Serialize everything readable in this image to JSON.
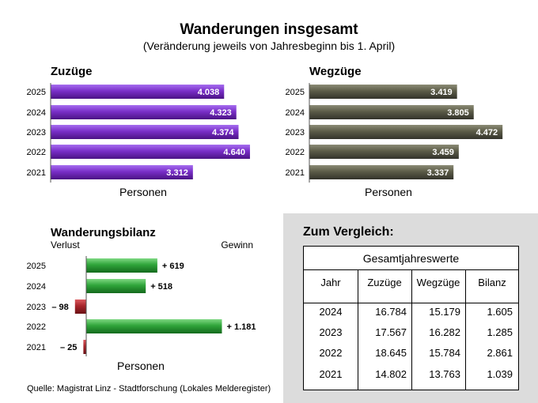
{
  "title": "Wanderungen insgesamt",
  "subtitle": "(Veränderung jeweils von Jahresbeginn bis 1. April)",
  "chart_data": [
    {
      "type": "bar",
      "title": "Zuzüge",
      "categories": [
        "2025",
        "2024",
        "2023",
        "2022",
        "2021"
      ],
      "values": [
        4038,
        4323,
        4374,
        4640,
        3312
      ],
      "value_labels": [
        "4.038",
        "4.323",
        "4.374",
        "4.640",
        "3.312"
      ],
      "xlabel": "Personen",
      "color": "#7a2fc8"
    },
    {
      "type": "bar",
      "title": "Wegzüge",
      "categories": [
        "2025",
        "2024",
        "2023",
        "2022",
        "2021"
      ],
      "values": [
        3419,
        3805,
        4472,
        3459,
        3337
      ],
      "value_labels": [
        "3.419",
        "3.805",
        "4.472",
        "3.459",
        "3.337"
      ],
      "xlabel": "Personen",
      "color": "#5c5c48"
    },
    {
      "type": "bar",
      "title": "Wanderungsbilanz",
      "left_label": "Verlust",
      "right_label": "Gewinn",
      "categories": [
        "2025",
        "2024",
        "2023",
        "2022",
        "2021"
      ],
      "values": [
        619,
        518,
        -98,
        1181,
        -25
      ],
      "value_labels": [
        "+ 619",
        "+ 518",
        "– 98",
        "+ 1.181",
        "– 25"
      ],
      "xlabel": "Personen",
      "colors": {
        "positive": "#2fa43a",
        "negative": "#a8262c"
      }
    }
  ],
  "comparison": {
    "title": "Zum Vergleich:",
    "caption": "Gesamtjahreswerte",
    "headers": [
      "Jahr",
      "Zuzüge",
      "Wegzüge",
      "Bilanz"
    ],
    "rows": [
      [
        "2024",
        "16.784",
        "15.179",
        "1.605"
      ],
      [
        "2023",
        "17.567",
        "16.282",
        "1.285"
      ],
      [
        "2022",
        "18.645",
        "15.784",
        "2.861"
      ],
      [
        "2021",
        "14.802",
        "13.763",
        "1.039"
      ]
    ]
  },
  "source": "Quelle: Magistrat Linz - Stadtforschung (Lokales Melderegister)"
}
